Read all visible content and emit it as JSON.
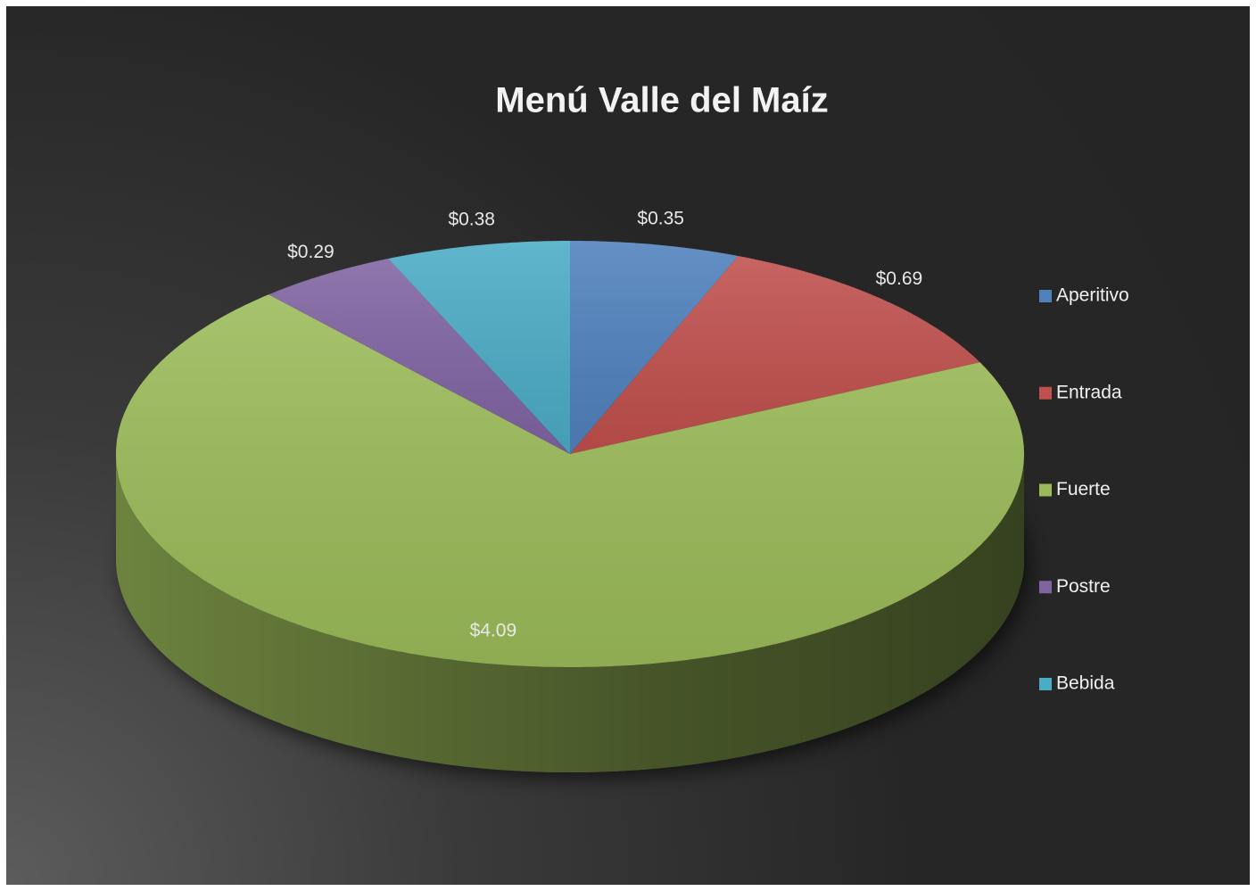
{
  "chart_data": {
    "type": "pie",
    "title": "Menú Valle del Maíz",
    "categories": [
      "Aperitivo",
      "Entrada",
      "Fuerte",
      "Postre",
      "Bebida"
    ],
    "values": [
      0.35,
      0.69,
      4.09,
      0.29,
      0.38
    ],
    "value_labels": [
      "$0.35",
      "$0.69",
      "$4.09",
      "$0.29",
      "$0.38"
    ],
    "colors": [
      "#4f81bd",
      "#c0504d",
      "#9bbb59",
      "#8064a2",
      "#4bacc6"
    ],
    "legend": "right"
  }
}
